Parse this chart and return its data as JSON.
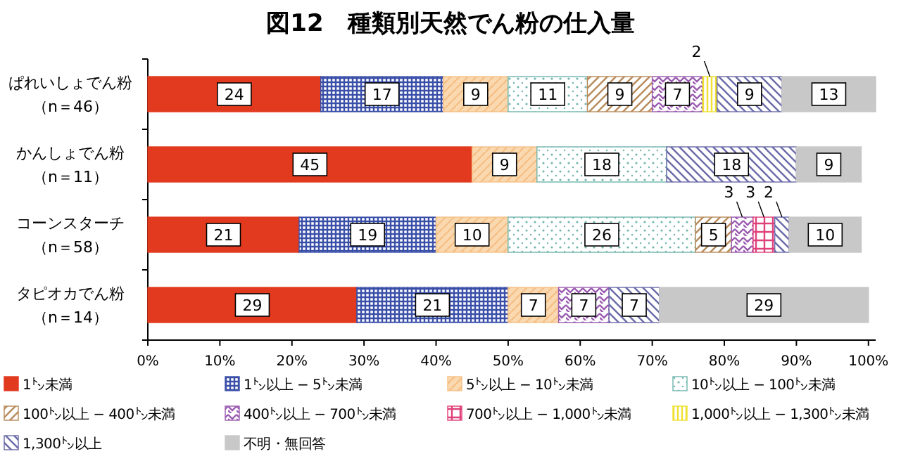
{
  "chart_data": {
    "type": "bar",
    "title": "図12　種類別天然でん粉の仕入量",
    "orientation": "horizontal",
    "stacked": true,
    "data_labels": true,
    "grid": false,
    "legend": "bottom",
    "categories": [
      "ぱれいしょでん粉（n＝46）",
      "かんしょでん粉（n＝11）",
      "コーンスターチ（n＝58）",
      "タピオカでん粉（n＝14）"
    ],
    "xlim": [
      0,
      101
    ],
    "xticks": [
      {
        "value": 0,
        "label": "0%"
      },
      {
        "value": 10,
        "label": "10%"
      },
      {
        "value": 20,
        "label": "20%"
      },
      {
        "value": 30,
        "label": "30%"
      },
      {
        "value": 40,
        "label": "40%"
      },
      {
        "value": 50,
        "label": "50%"
      },
      {
        "value": 60,
        "label": "60%"
      },
      {
        "value": 70,
        "label": "70%"
      },
      {
        "value": 80,
        "label": "80%"
      },
      {
        "value": 90,
        "label": "90%"
      },
      {
        "value": 100,
        "label": "100%"
      }
    ],
    "series": [
      {
        "name": "1㌧未満",
        "color": "#e23a1f",
        "values": [
          24,
          45,
          21,
          29
        ]
      },
      {
        "name": "1㌧以上 − 5㌧未満",
        "color": "#3a4fa8",
        "values": [
          17,
          null,
          19,
          21
        ]
      },
      {
        "name": "5㌧以上 − 10㌧未満",
        "color": "#f5bf85",
        "values": [
          9,
          9,
          10,
          7
        ]
      },
      {
        "name": "10㌧以上 − 100㌧未満",
        "color": "#6fb5ad",
        "values": [
          11,
          18,
          26,
          null
        ]
      },
      {
        "name": "100㌧以上 − 400㌧未満",
        "color": "#b88a5a",
        "values": [
          9,
          null,
          5,
          null
        ]
      },
      {
        "name": "400㌧以上 − 700㌧未満",
        "color": "#9a5ab0",
        "values": [
          7,
          null,
          3,
          7
        ]
      },
      {
        "name": "700㌧以上 − 1,000㌧未満",
        "color": "#e0407a",
        "values": [
          null,
          null,
          3,
          null
        ]
      },
      {
        "name": "1,000㌧以上 − 1,300㌧未満",
        "color": "#f0e030",
        "values": [
          2,
          null,
          null,
          null
        ]
      },
      {
        "name": "1,300㌧以上",
        "color": "#6a6aa8",
        "values": [
          9,
          18,
          2,
          7
        ]
      },
      {
        "name": "不明・無回答",
        "color": "#c8c8c8",
        "values": [
          13,
          9,
          10,
          29
        ]
      }
    ]
  }
}
